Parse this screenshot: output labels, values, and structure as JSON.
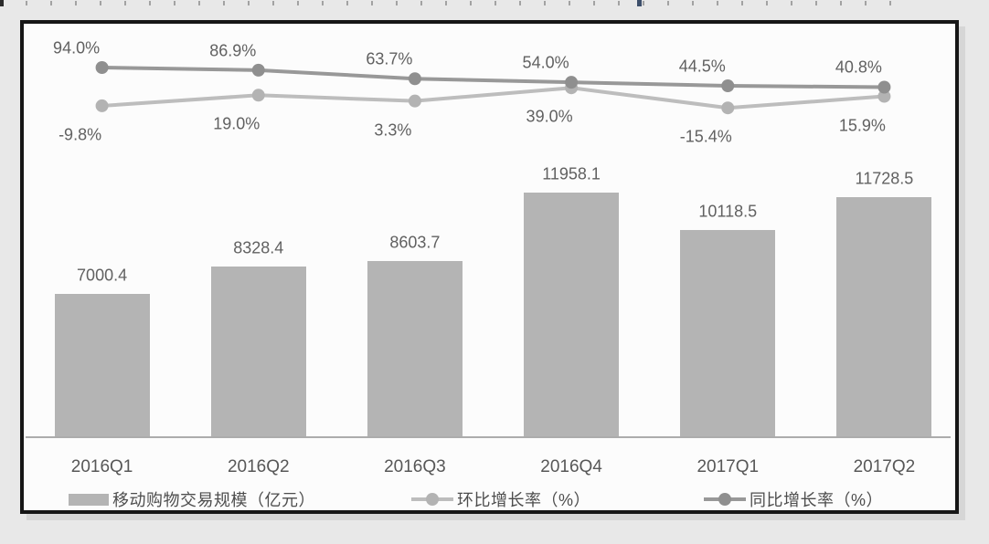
{
  "page": {
    "background": "#e8e8e8",
    "frame_border": "#161616",
    "card_background": "#fcfcfc"
  },
  "chart_data": {
    "type": "bar",
    "title": "",
    "xlabel": "",
    "ylabel": "",
    "grid": false,
    "legend_position": "bottom",
    "categories": [
      "2016Q1",
      "2016Q2",
      "2016Q3",
      "2016Q4",
      "2017Q1",
      "2017Q2"
    ],
    "series": [
      {
        "name": "移动购物交易规模（亿元）",
        "type": "bar",
        "color": "#b4b4b4",
        "values": [
          7000.4,
          8328.4,
          8603.7,
          11958.1,
          10118.5,
          11728.5
        ],
        "labels": [
          "7000.4",
          "8328.4",
          "8603.7",
          "11958.1",
          "10118.5",
          "11728.5"
        ]
      },
      {
        "name": "环比增长率（%）",
        "type": "line",
        "color": "#bdbdbd",
        "marker_color": "#b3b3b3",
        "values": [
          -9.8,
          19.0,
          3.3,
          39.0,
          -15.4,
          15.9
        ],
        "labels": [
          "-9.8%",
          "19.0%",
          "3.3%",
          "39.0%",
          "-15.4%",
          "15.9%"
        ]
      },
      {
        "name": "同比增长率（%）",
        "type": "line",
        "color": "#989898",
        "marker_color": "#8f8f8f",
        "values": [
          94.0,
          86.9,
          63.7,
          54.0,
          44.5,
          40.8
        ],
        "labels": [
          "94.0%",
          "86.9%",
          "63.7%",
          "54.0%",
          "44.5%",
          "40.8%"
        ]
      }
    ],
    "legend": [
      "移动购物交易规模（亿元）",
      "环比增长率（%）",
      "同比增长率（%）"
    ],
    "axes": {
      "y_axis_visible": false,
      "x_axis_line_color": "#acacac"
    }
  }
}
